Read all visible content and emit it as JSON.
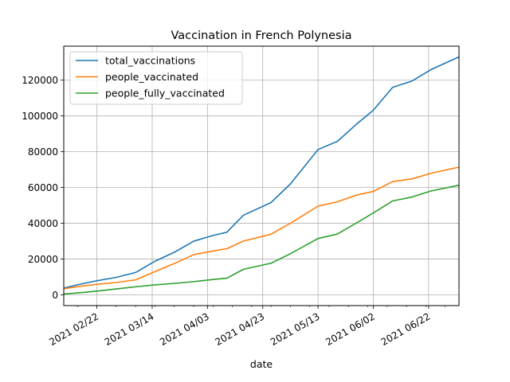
{
  "chart_data": {
    "type": "line",
    "title": "Vaccination in French Polynesia",
    "xlabel": "date",
    "ylabel": "",
    "grid": true,
    "legend_position": "upper-left",
    "xlim": [
      "2021-02-10",
      "2021-07-03"
    ],
    "ylim": [
      -6000,
      139000
    ],
    "x_ticks": [
      "2021-02-22",
      "2021-03-14",
      "2021-04-03",
      "2021-04-23",
      "2021-05-13",
      "2021-06-02",
      "2021-06-22"
    ],
    "x_tick_labels": [
      "2021 02/22",
      "2021 03/14",
      "2021 04/03",
      "2021 04/23",
      "2021 05/13",
      "2021 06/02",
      "2021 06/22"
    ],
    "y_ticks": [
      0,
      20000,
      40000,
      60000,
      80000,
      100000,
      120000
    ],
    "y_tick_labels": [
      "0",
      "20000",
      "40000",
      "60000",
      "80000",
      "100000",
      "120000"
    ],
    "x": [
      "2021-02-10",
      "2021-02-16",
      "2021-02-22",
      "2021-03-01",
      "2021-03-08",
      "2021-03-15",
      "2021-03-22",
      "2021-03-29",
      "2021-04-05",
      "2021-04-10",
      "2021-04-16",
      "2021-04-26",
      "2021-05-03",
      "2021-05-13",
      "2021-05-20",
      "2021-05-27",
      "2021-06-02",
      "2021-06-09",
      "2021-06-16",
      "2021-06-23",
      "2021-07-03"
    ],
    "series": [
      {
        "name": "total_vaccinations",
        "color": "#1f77b4",
        "values": [
          3800,
          6000,
          7900,
          9800,
          12500,
          18800,
          23800,
          30000,
          33200,
          35000,
          44500,
          51600,
          62000,
          81200,
          85800,
          95500,
          103200,
          116000,
          119500,
          126000,
          133000
        ]
      },
      {
        "name": "people_vaccinated",
        "color": "#ff7f0e",
        "values": [
          3400,
          4800,
          5900,
          6900,
          8400,
          13000,
          17500,
          22500,
          24500,
          25800,
          30100,
          33900,
          40000,
          49600,
          52000,
          55800,
          57800,
          63300,
          64800,
          68000,
          71400
        ]
      },
      {
        "name": "people_fully_vaccinated",
        "color": "#2ca02c",
        "values": [
          500,
          1200,
          2100,
          3300,
          4500,
          5600,
          6400,
          7400,
          8600,
          9300,
          14300,
          17700,
          23000,
          31500,
          34000,
          40300,
          45800,
          52500,
          54700,
          58100,
          61300
        ]
      }
    ]
  }
}
